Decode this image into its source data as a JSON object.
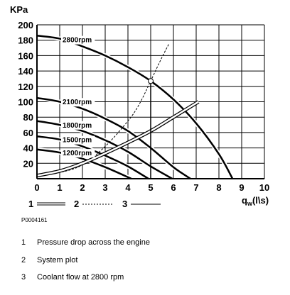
{
  "chart_data": {
    "type": "line",
    "y_unit": "KPa",
    "x_label_main": "q",
    "x_label_sub": "w",
    "x_label_units": "(l\\s)",
    "xlim": [
      0,
      10
    ],
    "ylim": [
      0,
      200
    ],
    "x_ticks": [
      "0",
      "1",
      "2",
      "3",
      "4",
      "5",
      "6",
      "7",
      "8",
      "9",
      "10"
    ],
    "y_ticks": [
      "20",
      "40",
      "60",
      "80",
      "100",
      "120",
      "140",
      "160",
      "180",
      "200"
    ],
    "grid": true,
    "series": [
      {
        "name": "2800rpm",
        "x": [
          0,
          1,
          2,
          3,
          4,
          5,
          6,
          7,
          8,
          8.6
        ],
        "y": [
          186,
          182,
          172,
          160,
          145,
          127,
          103,
          72,
          32,
          0
        ]
      },
      {
        "name": "2100rpm",
        "x": [
          0,
          1,
          2,
          3,
          4,
          5,
          6,
          6.75
        ],
        "y": [
          105,
          100,
          91,
          78,
          62,
          40,
          15,
          0
        ]
      },
      {
        "name": "1800rpm",
        "x": [
          0,
          1,
          2,
          3,
          4,
          5,
          5.95
        ],
        "y": [
          75,
          70,
          62,
          50,
          35,
          16,
          0
        ]
      },
      {
        "name": "1500rpm",
        "x": [
          0,
          1,
          2,
          3,
          4,
          4.9
        ],
        "y": [
          55,
          51,
          42,
          30,
          16,
          0
        ]
      },
      {
        "name": "1200rpm",
        "x": [
          0,
          1,
          2,
          3,
          4.15
        ],
        "y": [
          38,
          34,
          26,
          15,
          0
        ]
      }
    ],
    "system_plot": {
      "x": [
        0,
        1,
        2,
        3,
        4,
        5,
        6,
        7.1
      ],
      "y": [
        4,
        10,
        20,
        33,
        47,
        62,
        80,
        100
      ]
    },
    "dashed_curve": {
      "x": [
        0,
        1,
        2,
        3,
        4,
        4.5,
        5,
        5.5,
        5.8
      ],
      "y": [
        4,
        8,
        18,
        42,
        75,
        97,
        127,
        158,
        175
      ]
    },
    "operating_point": {
      "x": 5,
      "y": 127
    },
    "legend": [
      {
        "number": "1",
        "style": "double"
      },
      {
        "number": "2",
        "style": "dashed"
      },
      {
        "number": "3",
        "style": "solid"
      }
    ]
  },
  "figure_id": "P0004161",
  "notes": [
    {
      "number": "1",
      "text": "Pressure drop across the engine"
    },
    {
      "number": "2",
      "text": "System plot"
    },
    {
      "number": "3",
      "text": "Coolant flow at 2800 rpm"
    }
  ]
}
